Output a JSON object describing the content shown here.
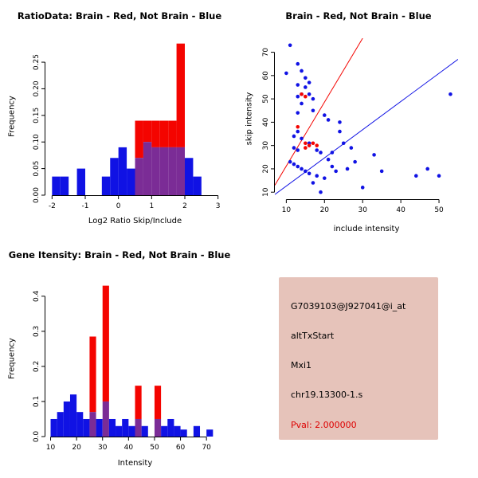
{
  "colors": {
    "red": "#f40400",
    "blue": "#1012e4",
    "purple": "#7b2c96",
    "axis": "#000000",
    "pval_red": "#dd0000",
    "info_background": "#e6c3ba"
  },
  "chart_data": [
    {
      "type": "histogram",
      "title": "RatioData: Brain - Red, Not Brain - Blue",
      "xlabel": "Log2 Ratio Skip/Include",
      "ylabel": "Frequency",
      "xlim": [
        -2.2,
        3.2
      ],
      "ylim": [
        0,
        0.295
      ],
      "xticks": [
        -2,
        -1,
        0,
        1,
        2,
        3
      ],
      "yticks": [
        0,
        0.05,
        0.1,
        0.15,
        0.2,
        0.25
      ],
      "ytick_labels": [
        "0.00",
        "0.05",
        "0.10",
        "0.15",
        "0.20",
        "0.25"
      ],
      "bin_start": -2,
      "bin_width": 0.25,
      "series": [
        {
          "name": "Not Brain",
          "color": "blue",
          "values": [
            0.035,
            0.035,
            0,
            0.05,
            0,
            0,
            0.035,
            0.07,
            0.09,
            0.05,
            0.07,
            0.1,
            0.09,
            0.09,
            0.09,
            0.09,
            0.07,
            0.035,
            0,
            0
          ]
        },
        {
          "name": "Brain",
          "color": "red",
          "values": [
            0,
            0,
            0,
            0,
            0,
            0,
            0,
            0,
            0,
            0,
            0.14,
            0.14,
            0.14,
            0.14,
            0.14,
            0.285,
            0,
            0,
            0,
            0
          ]
        }
      ]
    },
    {
      "type": "scatter",
      "title": "Brain - Red, Not Brain - Blue",
      "xlabel": "include intensity",
      "ylabel": "skip intensity",
      "xlim": [
        7,
        55
      ],
      "ylim": [
        7,
        76
      ],
      "xticks": [
        10,
        20,
        30,
        40,
        50
      ],
      "yticks": [
        10,
        20,
        30,
        40,
        50,
        60,
        70
      ],
      "series": [
        {
          "name": "Not Brain",
          "color": "blue",
          "points": [
            [
              10,
              61
            ],
            [
              11,
              73
            ],
            [
              13,
              65
            ],
            [
              14,
              62
            ],
            [
              15,
              59
            ],
            [
              13,
              56
            ],
            [
              16,
              57
            ],
            [
              15,
              55
            ],
            [
              13,
              51
            ],
            [
              14,
              52
            ],
            [
              16,
              52
            ],
            [
              17,
              50
            ],
            [
              14,
              48
            ],
            [
              13,
              44
            ],
            [
              17,
              45
            ],
            [
              20,
              43
            ],
            [
              21,
              41
            ],
            [
              13,
              36
            ],
            [
              12,
              34
            ],
            [
              14,
              33
            ],
            [
              16,
              31
            ],
            [
              12,
              29
            ],
            [
              13,
              28
            ],
            [
              18,
              28
            ],
            [
              19,
              27
            ],
            [
              11,
              23
            ],
            [
              12,
              22
            ],
            [
              13,
              21
            ],
            [
              14,
              20
            ],
            [
              15,
              19
            ],
            [
              16,
              18
            ],
            [
              18,
              17
            ],
            [
              20,
              16
            ],
            [
              17,
              14
            ],
            [
              19,
              10
            ],
            [
              21,
              24
            ],
            [
              22,
              21
            ],
            [
              23,
              19
            ],
            [
              22,
              27
            ],
            [
              24,
              40
            ],
            [
              24,
              36
            ],
            [
              25,
              31
            ],
            [
              27,
              29
            ],
            [
              26,
              20
            ],
            [
              28,
              23
            ],
            [
              30,
              12
            ],
            [
              33,
              26
            ],
            [
              35,
              19
            ],
            [
              44,
              17
            ],
            [
              47,
              20
            ],
            [
              50,
              17
            ],
            [
              53,
              52
            ]
          ]
        },
        {
          "name": "Brain",
          "color": "red",
          "points": [
            [
              14,
              52
            ],
            [
              15,
              51
            ],
            [
              13,
              38
            ],
            [
              15,
              31
            ],
            [
              16,
              30
            ],
            [
              17,
              31
            ],
            [
              18,
              30
            ],
            [
              15,
              29
            ]
          ]
        }
      ],
      "lines": [
        {
          "name": "brain-fit-line",
          "color": "red",
          "x": [
            7,
            30
          ],
          "y": [
            13,
            76
          ]
        },
        {
          "name": "notbrain-fit-line",
          "color": "blue",
          "x": [
            7,
            55
          ],
          "y": [
            9,
            67
          ]
        }
      ]
    },
    {
      "type": "histogram",
      "title": "Gene Itensity: Brain - Red, Not Brain - Blue",
      "xlabel": "Intensity",
      "ylabel": "Frequency",
      "xlim": [
        8,
        77
      ],
      "ylim": [
        0,
        0.445
      ],
      "xticks": [
        10,
        20,
        30,
        40,
        50,
        60,
        70
      ],
      "yticks": [
        0,
        0.1,
        0.2,
        0.3,
        0.4
      ],
      "ytick_labels": [
        "0.0",
        "0.1",
        "0.2",
        "0.3",
        "0.4"
      ],
      "bin_start": 10,
      "bin_width": 2.5,
      "series": [
        {
          "name": "Not Brain",
          "color": "blue",
          "values": [
            0.05,
            0.07,
            0.1,
            0.12,
            0.07,
            0.05,
            0.07,
            0.05,
            0.1,
            0.05,
            0.03,
            0.05,
            0.03,
            0.05,
            0.03,
            0,
            0.05,
            0.03,
            0.05,
            0.03,
            0.02,
            0,
            0.03,
            0,
            0.02,
            0
          ]
        },
        {
          "name": "Brain",
          "color": "red",
          "values": [
            0,
            0,
            0,
            0,
            0,
            0,
            0.285,
            0,
            0.43,
            0,
            0,
            0,
            0,
            0.145,
            0,
            0,
            0.145,
            0,
            0,
            0,
            0,
            0,
            0,
            0,
            0,
            0
          ]
        }
      ]
    }
  ],
  "info_box": {
    "background": "#e6c3ba",
    "lines": [
      {
        "text": "G7039103@J927041@i_at",
        "color": "#000000"
      },
      {
        "text": "altTxStart",
        "color": "#000000"
      },
      {
        "text": "Mxi1",
        "color": "#000000"
      },
      {
        "text": "chr19.13300-1.s",
        "color": "#000000"
      },
      {
        "text": "Pval: 2.000000",
        "color": "#dd0000"
      }
    ]
  }
}
